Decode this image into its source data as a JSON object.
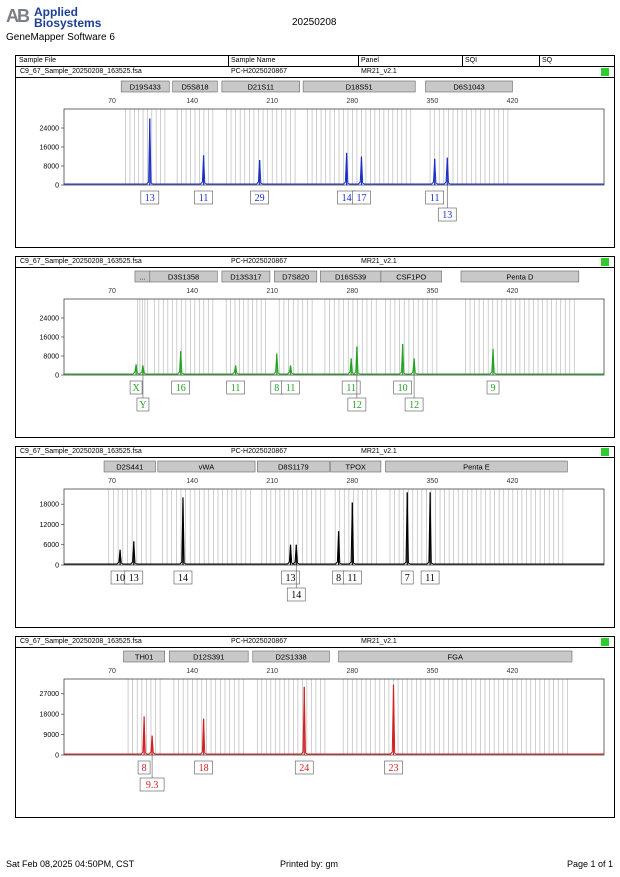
{
  "header": {
    "logo_mark": "AB",
    "logo_line1": "Applied",
    "logo_line2": "Biosystems",
    "software": "GeneMapper Software 6",
    "date_title": "20250208"
  },
  "columns": [
    "Sample File",
    "Sample Name",
    "Panel",
    "SQI",
    "SQ"
  ],
  "footer": {
    "printed_at": "Sat Feb 08,2025 04:50PM, CST",
    "printed_by": "Printed by: gm",
    "page": "Page 1 of 1"
  },
  "chart_data": [
    {
      "type": "line",
      "dye": "blue",
      "color": "#1a2fc8",
      "sample_file": "C9_67_Sample_20250208_163525.fsa",
      "sample_name": "PC-H2025020867",
      "panel": "MR21_v2.1",
      "x_ticks": [
        70,
        140,
        210,
        280,
        350,
        420
      ],
      "y_ticks": [
        0,
        8000,
        16000,
        24000
      ],
      "ylim": [
        0,
        32000
      ],
      "markers": [
        {
          "name": "D19S433",
          "start": 78,
          "end": 120
        },
        {
          "name": "D5S818",
          "start": 123,
          "end": 162
        },
        {
          "name": "D21S11",
          "start": 166,
          "end": 234
        },
        {
          "name": "D18S51",
          "start": 237,
          "end": 335
        },
        {
          "name": "D6S1043",
          "start": 344,
          "end": 420
        }
      ],
      "peaks": [
        {
          "x": 103,
          "height": 28000,
          "label": "13",
          "row": 0
        },
        {
          "x": 150,
          "height": 12500,
          "label": "11",
          "row": 0
        },
        {
          "x": 199,
          "height": 10500,
          "label": "29",
          "row": 0
        },
        {
          "x": 275,
          "height": 13500,
          "label": "14",
          "row": 0
        },
        {
          "x": 288,
          "height": 12000,
          "label": "17",
          "row": 0
        },
        {
          "x": 352,
          "height": 11000,
          "label": "11",
          "row": 0
        },
        {
          "x": 363,
          "height": 11500,
          "label": "13",
          "row": 1
        }
      ]
    },
    {
      "type": "line",
      "dye": "green",
      "color": "#22a322",
      "sample_file": "C9_67_Sample_20250208_163525.fsa",
      "sample_name": "PC-H2025020867",
      "panel": "MR21_v2.1",
      "x_ticks": [
        70,
        140,
        210,
        280,
        350,
        420
      ],
      "y_ticks": [
        0,
        8000,
        16000,
        24000
      ],
      "ylim": [
        0,
        32000
      ],
      "markers": [
        {
          "name": "...",
          "start": 90,
          "end": 103
        },
        {
          "name": "D3S1358",
          "start": 103,
          "end": 162
        },
        {
          "name": "D13S317",
          "start": 166,
          "end": 208
        },
        {
          "name": "D7S820",
          "start": 212,
          "end": 249
        },
        {
          "name": "D16S539",
          "start": 252,
          "end": 305
        },
        {
          "name": "CSF1PO",
          "start": 305,
          "end": 358
        },
        {
          "name": "Penta D",
          "start": 375,
          "end": 478
        }
      ],
      "peaks": [
        {
          "x": 91,
          "height": 4500,
          "label": "X",
          "row": 0
        },
        {
          "x": 97,
          "height": 4000,
          "label": "Y",
          "row": 1
        },
        {
          "x": 130,
          "height": 10000,
          "label": "16",
          "row": 0
        },
        {
          "x": 178,
          "height": 4000,
          "label": "11",
          "row": 0
        },
        {
          "x": 214,
          "height": 9000,
          "label": "8",
          "row": 0
        },
        {
          "x": 226,
          "height": 4000,
          "label": "11",
          "row": 0
        },
        {
          "x": 279,
          "height": 7000,
          "label": "11",
          "row": 0
        },
        {
          "x": 284,
          "height": 12000,
          "label": "12",
          "row": 1
        },
        {
          "x": 324,
          "height": 13000,
          "label": "10",
          "row": 0
        },
        {
          "x": 334,
          "height": 7000,
          "label": "12",
          "row": 1
        },
        {
          "x": 403,
          "height": 11000,
          "label": "9",
          "row": 0
        }
      ]
    },
    {
      "type": "line",
      "dye": "black",
      "color": "#000000",
      "sample_file": "C9_67_Sample_20250208_163525.fsa",
      "sample_name": "PC-H2025020867",
      "panel": "MR21_v2.1",
      "x_ticks": [
        70,
        140,
        210,
        280,
        350,
        420
      ],
      "y_ticks": [
        0,
        6000,
        12000,
        18000
      ],
      "ylim": [
        0,
        22500
      ],
      "markers": [
        {
          "name": "D2S441",
          "start": 63,
          "end": 108
        },
        {
          "name": "vWA",
          "start": 110,
          "end": 195
        },
        {
          "name": "D8S1179",
          "start": 197,
          "end": 260
        },
        {
          "name": "TPOX",
          "start": 261,
          "end": 305
        },
        {
          "name": "Penta E",
          "start": 309,
          "end": 468
        }
      ],
      "peaks": [
        {
          "x": 77,
          "height": 4500,
          "label": "10",
          "row": 0
        },
        {
          "x": 89,
          "height": 7000,
          "label": "13",
          "row": 0
        },
        {
          "x": 132,
          "height": 20000,
          "label": "14",
          "row": 0
        },
        {
          "x": 226,
          "height": 6000,
          "label": "13",
          "row": 0
        },
        {
          "x": 231,
          "height": 6000,
          "label": "14",
          "row": 1
        },
        {
          "x": 268,
          "height": 10000,
          "label": "8",
          "row": 0
        },
        {
          "x": 280,
          "height": 18500,
          "label": "11",
          "row": 0
        },
        {
          "x": 328,
          "height": 21500,
          "label": "7",
          "row": 0
        },
        {
          "x": 348,
          "height": 21500,
          "label": "11",
          "row": 0
        }
      ]
    },
    {
      "type": "line",
      "dye": "red",
      "color": "#d42020",
      "sample_file": "C9_67_Sample_20250208_163525.fsa",
      "sample_name": "PC-H2025020867",
      "panel": "MR21_v2.1",
      "x_ticks": [
        70,
        140,
        210,
        280,
        350,
        420
      ],
      "y_ticks": [
        0,
        9000,
        18000,
        27000
      ],
      "ylim": [
        0,
        33500
      ],
      "markers": [
        {
          "name": "TH01",
          "start": 80,
          "end": 116
        },
        {
          "name": "D12S391",
          "start": 120,
          "end": 189
        },
        {
          "name": "D2S1338",
          "start": 193,
          "end": 260
        },
        {
          "name": "FGA",
          "start": 268,
          "end": 472
        }
      ],
      "peaks": [
        {
          "x": 98,
          "height": 17000,
          "label": "8",
          "row": 0
        },
        {
          "x": 105,
          "height": 8500,
          "label": "9.3",
          "row": 1
        },
        {
          "x": 150,
          "height": 16000,
          "label": "18",
          "row": 0
        },
        {
          "x": 238,
          "height": 30000,
          "label": "24",
          "row": 0
        },
        {
          "x": 316,
          "height": 31000,
          "label": "23",
          "row": 0
        }
      ]
    }
  ]
}
